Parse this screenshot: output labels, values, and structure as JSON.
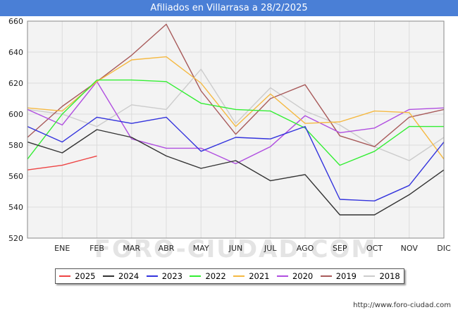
{
  "header": {
    "title": "Afiliados en Villarrasa a 28/2/2025"
  },
  "source": "http://www.foro-ciudad.com",
  "watermark": "FORO-CIUDAD.COM",
  "chart_data": {
    "type": "line",
    "title": "Afiliados en Villarrasa a 28/2/2025",
    "x": [
      "",
      "ENE",
      "FEB",
      "MAR",
      "ABR",
      "MAY",
      "JUN",
      "JUL",
      "AGO",
      "SEP",
      "OCT",
      "NOV",
      "DIC"
    ],
    "ylim": [
      520,
      660
    ],
    "yticks": [
      520,
      540,
      560,
      580,
      600,
      620,
      640,
      660
    ],
    "grid": true,
    "legend_position": "bottom",
    "series": [
      {
        "name": "2025",
        "color": "#ee4444",
        "values": [
          564,
          567,
          573,
          null,
          null,
          null,
          null,
          null,
          null,
          null,
          null,
          null,
          null
        ]
      },
      {
        "name": "2024",
        "color": "#333333",
        "values": [
          582,
          575,
          590,
          585,
          573,
          565,
          570,
          557,
          561,
          535,
          535,
          548,
          564
        ]
      },
      {
        "name": "2023",
        "color": "#3333dd",
        "values": [
          592,
          582,
          598,
          594,
          598,
          576,
          585,
          584,
          592,
          545,
          544,
          554,
          582
        ]
      },
      {
        "name": "2022",
        "color": "#33ee33",
        "values": [
          571,
          600,
          622,
          622,
          621,
          607,
          603,
          602,
          591,
          567,
          576,
          592,
          592
        ]
      },
      {
        "name": "2021",
        "color": "#f5b942",
        "values": [
          604,
          602,
          621,
          635,
          637,
          620,
          592,
          613,
          594,
          595,
          602,
          601,
          571
        ]
      },
      {
        "name": "2020",
        "color": "#b04ee0",
        "values": [
          603,
          593,
          621,
          584,
          578,
          578,
          568,
          579,
          599,
          588,
          591,
          603,
          604
        ]
      },
      {
        "name": "2019",
        "color": "#a85a5a",
        "values": [
          585,
          605,
          621,
          638,
          658,
          615,
          587,
          610,
          619,
          586,
          579,
          598,
          603
        ]
      },
      {
        "name": "2018",
        "color": "#cccccc",
        "values": [
          603,
          600,
          592,
          606,
          603,
          629,
          594,
          617,
          602,
          593,
          579,
          570,
          585
        ]
      }
    ]
  }
}
